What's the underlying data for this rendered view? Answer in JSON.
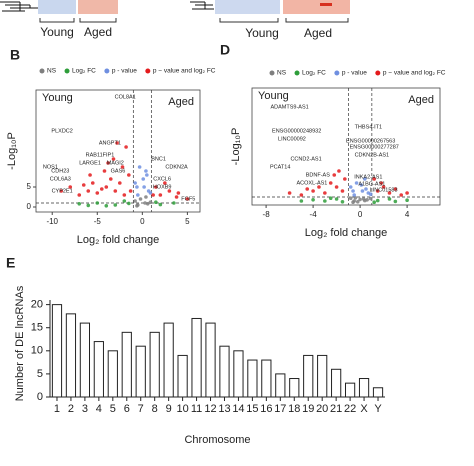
{
  "panel_labels": [
    "B",
    "D",
    "E"
  ],
  "heatmap_labels": [
    "Young",
    "Aged",
    "Young",
    "Aged"
  ],
  "chart_data": [
    {
      "type": "scatter",
      "xlabel": "Log₂ fold change",
      "ylabel": "-Log₁₀P",
      "xlim": [
        -11.8,
        6.4
      ],
      "ylim": [
        -1.25,
        29.25
      ],
      "xticks": [
        -10,
        -5,
        0,
        5
      ],
      "yticks": [
        0,
        5
      ],
      "cutoff_x": [
        -1,
        1
      ],
      "cutoff_y": 1,
      "group_labels": [
        "Young",
        "Aged"
      ],
      "series": [
        {
          "name": "NS",
          "color": "#7f7f7f",
          "x": [
            -0.5,
            0.3,
            -0.8,
            0.6,
            -0.2,
            0.9,
            -0.6,
            0.4
          ],
          "values": [
            0.5,
            1,
            1.5,
            0.8,
            2,
            1.2,
            0.3,
            2.5
          ]
        },
        {
          "name": "Log₂ FC",
          "color": "#2e9e3a",
          "x": [
            -3,
            -5,
            -2,
            -7,
            2,
            3.5,
            -4,
            1.5,
            -1.5,
            -6
          ],
          "values": [
            0.5,
            1,
            1.5,
            0.8,
            0.6,
            1,
            0.3,
            1.2,
            0.9,
            0.4
          ]
        },
        {
          "name": "p - value",
          "color": "#6f8fe0",
          "x": [
            -0.5,
            0.2,
            0.7,
            -0.8,
            0.5,
            -0.3,
            0.9,
            0.1,
            -0.6,
            0.4
          ],
          "values": [
            3,
            5,
            4,
            6,
            8,
            10,
            3.5,
            7,
            5,
            9
          ]
        },
        {
          "name": "p − value and log₂ FC",
          "color": "#e41a1c",
          "x": [
            -2,
            -3,
            -4,
            -5,
            -6,
            -7,
            -8,
            -2.5,
            -3.5,
            -4.5,
            -5.5,
            -6.5,
            -1.5,
            -2.2,
            -3.2,
            2,
            3,
            4,
            1.5,
            2.5,
            -1.8,
            -4.2,
            -5.8,
            -9,
            -3.8,
            -2.8,
            1.2,
            3.8,
            5,
            -1.3
          ],
          "values": [
            3,
            4,
            5,
            3.5,
            4,
            3,
            5,
            6,
            7,
            4.5,
            6,
            5.5,
            8,
            10,
            12,
            3,
            4,
            3.5,
            5,
            6,
            15,
            9,
            8,
            4,
            11,
            16,
            3,
            2.5,
            2,
            4
          ]
        }
      ],
      "annotations": [
        {
          "text": "COL8A1",
          "x": -1.9,
          "y": 27.5
        },
        {
          "text": "PLXDC2",
          "x": -8.9,
          "y": 19
        },
        {
          "text": "ANGPT1",
          "x": -3.6,
          "y": 16
        },
        {
          "text": "RAB11FIP1",
          "x": -4.7,
          "y": 13
        },
        {
          "text": "LARGE1",
          "x": -5.8,
          "y": 11
        },
        {
          "text": "MAGI2",
          "x": -3,
          "y": 11
        },
        {
          "text": "NOS1",
          "x": -10.2,
          "y": 10
        },
        {
          "text": "GAS6",
          "x": -2.7,
          "y": 9
        },
        {
          "text": "CDH23",
          "x": -9.1,
          "y": 9
        },
        {
          "text": "COL6A3",
          "x": -9.1,
          "y": 7
        },
        {
          "text": "CYP2E1",
          "x": -8.9,
          "y": 4
        },
        {
          "text": "BNC1",
          "x": 1.8,
          "y": 12
        },
        {
          "text": "CDKN2A",
          "x": 3.8,
          "y": 10
        },
        {
          "text": "CXCL6",
          "x": 2.2,
          "y": 7
        },
        {
          "text": "HOXB9",
          "x": 2.2,
          "y": 5
        },
        {
          "text": "FGF5",
          "x": 5.1,
          "y": 2
        }
      ]
    },
    {
      "type": "scatter",
      "xlabel": "Log₂ fold change",
      "ylabel": "-Log₁₀P",
      "xlim": [
        -9.2,
        6.8
      ],
      "ylim": [
        -0.5,
        28.75
      ],
      "xticks": [
        -8,
        -4,
        0,
        4
      ],
      "cutoff_x": [
        -1,
        1
      ],
      "cutoff_y": 1.5,
      "group_labels": [
        "Young",
        "Aged"
      ],
      "series": [
        {
          "name": "NS",
          "color": "#7f7f7f",
          "x": [
            -0.5,
            0.3,
            -0.8,
            0.6,
            -0.2,
            0.9,
            -0.6,
            0.4,
            0,
            -0.4
          ],
          "values": [
            0.5,
            1,
            1.2,
            0.8,
            0.3,
            1.1,
            0.2,
            0.6,
            0.9,
            1.3
          ]
        },
        {
          "name": "Log₂ FC",
          "color": "#2e9e3a",
          "x": [
            -3,
            -2,
            -1.5,
            -4,
            1.5,
            2.5,
            3,
            -2.5,
            -5,
            1.2,
            4
          ],
          "values": [
            0.5,
            1,
            0.3,
            0.8,
            0.6,
            1,
            0.4,
            1.2,
            0.5,
            0.2,
            0.7
          ]
        },
        {
          "name": "p - value",
          "color": "#6f8fe0",
          "x": [
            -0.5,
            0.2,
            0.7,
            -0.8,
            0.5,
            -0.3,
            0.9,
            0.1,
            -0.6,
            0.4
          ],
          "values": [
            2,
            3,
            2.5,
            4,
            3.5,
            5,
            2.2,
            4.5,
            3,
            6
          ]
        },
        {
          "name": "p − value and log₂ FC",
          "color": "#e41a1c",
          "x": [
            -1.5,
            -2,
            -3,
            -4,
            -5,
            -6,
            -1.3,
            -2.5,
            -3.5,
            1.5,
            2,
            2.5,
            3,
            1.2,
            3.5,
            -1.8,
            -2.2,
            4,
            1.8,
            -4.5
          ],
          "values": [
            3,
            4,
            2.5,
            3,
            2,
            2.5,
            6,
            5,
            4,
            3,
            4,
            2.5,
            3.5,
            6,
            2,
            8,
            7,
            2.5,
            5,
            3.5
          ]
        }
      ],
      "annotations": [
        {
          "text": "ADAMTS9-AS1",
          "x": -6,
          "y": 24
        },
        {
          "text": "ENSG00000248932",
          "x": -5.4,
          "y": 18
        },
        {
          "text": "LINC00092",
          "x": -5.8,
          "y": 16
        },
        {
          "text": "THBS4-IT1",
          "x": 0.7,
          "y": 19
        },
        {
          "text": "ENSG00000267563",
          "x": 0.9,
          "y": 15.5
        },
        {
          "text": "ENSG00000277287",
          "x": 1.2,
          "y": 14
        },
        {
          "text": "CDKN2B-AS1",
          "x": 1,
          "y": 12
        },
        {
          "text": "CCND2-AS1",
          "x": -4.6,
          "y": 11
        },
        {
          "text": "PCAT14",
          "x": -6.8,
          "y": 9
        },
        {
          "text": "BDNF-AS",
          "x": -3.6,
          "y": 7
        },
        {
          "text": "ACOXL-AS1",
          "x": -4.1,
          "y": 5
        },
        {
          "text": "INKA2-AS1",
          "x": 0.7,
          "y": 6.5
        },
        {
          "text": "A1BG-AS1",
          "x": 1,
          "y": 4.8
        },
        {
          "text": "LINC01583",
          "x": 2,
          "y": 3.2
        }
      ]
    },
    {
      "type": "bar",
      "xlabel": "Chromosome",
      "ylabel": "Number of DE lncRNAs",
      "categories": [
        "1",
        "2",
        "3",
        "4",
        "5",
        "6",
        "7",
        "8",
        "9",
        "10",
        "11",
        "12",
        "13",
        "14",
        "15",
        "16",
        "17",
        "18",
        "19",
        "20",
        "21",
        "22",
        "X",
        "Y"
      ],
      "values": [
        20,
        18,
        16,
        12,
        10,
        14,
        11,
        14,
        16,
        9,
        17,
        16,
        11,
        10,
        8,
        8,
        5,
        4,
        9,
        9,
        6,
        3,
        4,
        2
      ],
      "color": "#ffffff",
      "ylim": [
        0,
        21
      ],
      "yticks": [
        0,
        5,
        10,
        15,
        20
      ]
    }
  ]
}
